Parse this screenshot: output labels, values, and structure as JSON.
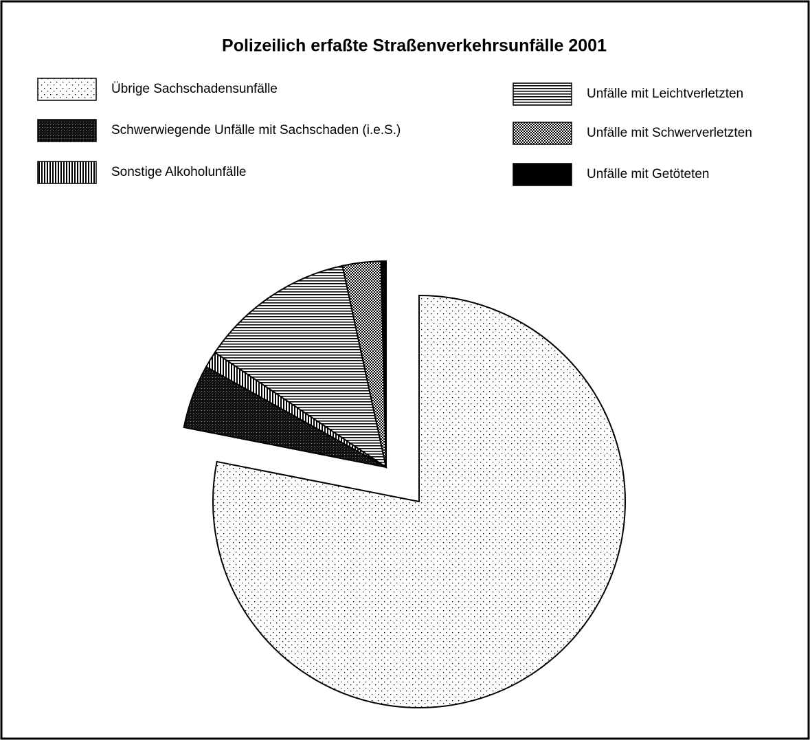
{
  "chart_data": {
    "type": "pie",
    "title": "Polizeilich erfaßte Straßenverkehrsunfälle 2001",
    "categories": [
      "Übrige Sachschadensunfälle",
      "Schwerwiegende Unfälle mit Sachschaden (i.e.S.)",
      "Sonstige Alkoholunfälle",
      "Unfälle mit Leichtverletzten",
      "Unfälle mit Schwerverletzten",
      "Unfälle mit Getöteten"
    ],
    "values": [
      78.1,
      5,
      1.3,
      12.2,
      3,
      0.4
    ],
    "patterns": [
      "dots",
      "dark-speckle",
      "vertical-lines",
      "horizontal-lines",
      "checker",
      "solid"
    ]
  }
}
